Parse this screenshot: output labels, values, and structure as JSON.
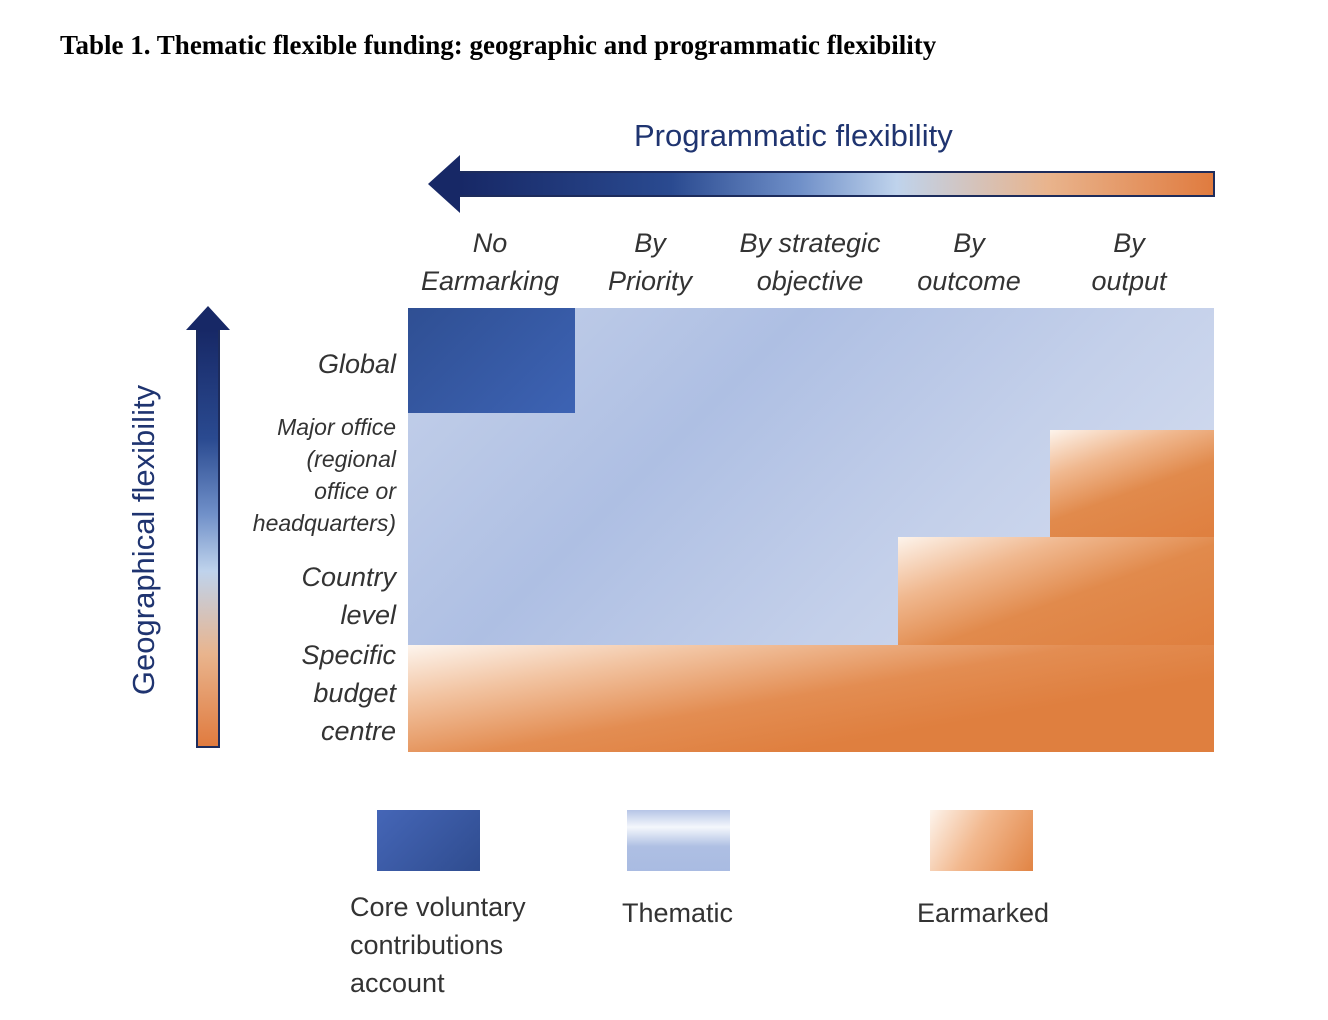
{
  "title": "Table 1. Thematic flexible funding: geographic and programmatic flexibility",
  "horizontal_axis": {
    "title": "Programmatic flexibility",
    "columns": [
      {
        "line1": "No",
        "line2": "Earmarking"
      },
      {
        "line1": "By",
        "line2": "Priority"
      },
      {
        "line1": "By strategic",
        "line2": "objective"
      },
      {
        "line1": "By",
        "line2": "outcome"
      },
      {
        "line1": "By",
        "line2": "output"
      }
    ]
  },
  "vertical_axis": {
    "title": "Geographical flexibility",
    "rows": {
      "global": [
        "Global"
      ],
      "major_office": [
        "Major office",
        "(regional",
        "office or",
        "headquarters)"
      ],
      "country": [
        "Country",
        "level"
      ],
      "specific": [
        "Specific",
        "budget",
        "centre"
      ]
    }
  },
  "legend": {
    "core": [
      "Core voluntary",
      "contributions",
      "account"
    ],
    "thematic": "Thematic",
    "earmarked": "Earmarked"
  },
  "colors": {
    "axis_title": "#1f3470",
    "core": "#3d63b4",
    "thematic": "#aebfe3",
    "earmarked": "#df7f3f"
  }
}
